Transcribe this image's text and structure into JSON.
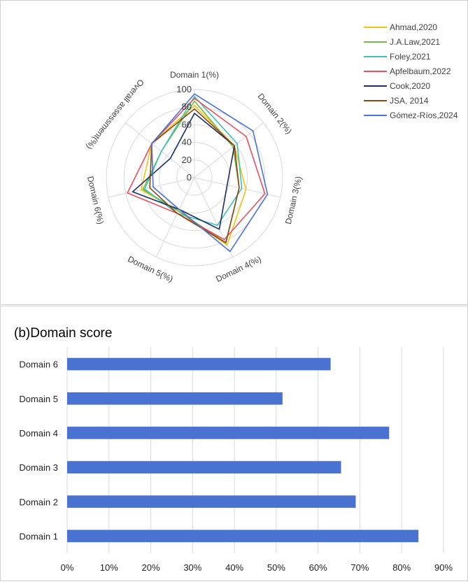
{
  "chart_data": [
    {
      "type": "radar",
      "title": "",
      "axes": [
        "Domain 1(%)",
        "Domain 2(%)",
        "Domain 3(%)",
        "Domain 4(%)",
        "Domain 5(%)",
        "Domain 6(%)",
        "Overall assessment(%)"
      ],
      "rlim": [
        0,
        100
      ],
      "rticks": [
        "0",
        "20",
        "40",
        "60",
        "80",
        "100"
      ],
      "grid": true,
      "legend_position": "top-right",
      "series": [
        {
          "name": "Ahmad,2020",
          "color": "#F2C311",
          "values": [
            82,
            58,
            60,
            85,
            42,
            62,
            62
          ]
        },
        {
          "name": "J.A.Law,2021",
          "color": "#74B94A",
          "values": [
            87,
            56,
            52,
            82,
            42,
            60,
            48
          ]
        },
        {
          "name": "Foley,2021",
          "color": "#3FC1B5",
          "values": [
            92,
            62,
            55,
            60,
            45,
            58,
            48
          ]
        },
        {
          "name": "Apfelbaum,2022",
          "color": "#E8505B",
          "values": [
            90,
            75,
            82,
            78,
            45,
            78,
            62
          ]
        },
        {
          "name": "Cook,2020",
          "color": "#1E2E6B",
          "values": [
            73,
            58,
            38,
            65,
            40,
            72,
            35
          ]
        },
        {
          "name": "JSA, 2014",
          "color": "#8B4513",
          "values": [
            78,
            58,
            52,
            82,
            45,
            52,
            62
          ]
        },
        {
          "name": "Gómez-Ríos,2024",
          "color": "#4A72D8",
          "values": [
            95,
            85,
            85,
            93,
            40,
            48,
            62
          ]
        }
      ]
    },
    {
      "type": "bar",
      "orientation": "horizontal",
      "title": "(b)Domain score",
      "categories": [
        "Domain 6",
        "Domain 5",
        "Domain 4",
        "Domain 3",
        "Domain 2",
        "Domain 1"
      ],
      "values": [
        63,
        51.5,
        77,
        65.5,
        69,
        84
      ],
      "color": "#4A72D0",
      "xlim": [
        0,
        90
      ],
      "xticks": [
        "0%",
        "10%",
        "20%",
        "30%",
        "40%",
        "50%",
        "60%",
        "70%",
        "80%",
        "90%"
      ],
      "xlabel": "",
      "ylabel": "",
      "grid": true
    }
  ]
}
